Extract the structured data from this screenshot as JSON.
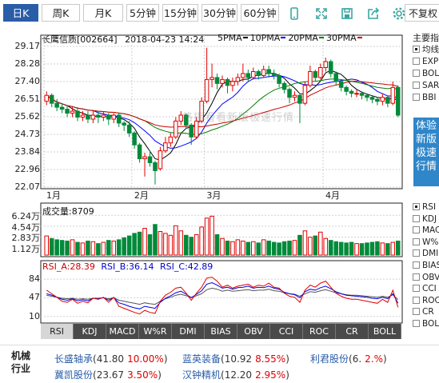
{
  "toolbar": {
    "tabs": [
      {
        "label": "日K",
        "active": true
      },
      {
        "label": "周K",
        "active": false
      },
      {
        "label": "月K",
        "active": false
      },
      {
        "label": "5分钟",
        "active": false
      },
      {
        "label": "15分钟",
        "active": false
      },
      {
        "label": "30分钟",
        "active": false
      },
      {
        "label": "60分钟",
        "active": false
      }
    ],
    "icons": [
      "mobile-icon",
      "fullscreen-icon",
      "save-icon",
      "share-icon",
      "settings-icon"
    ],
    "adjust": "不复权"
  },
  "header": {
    "stock": "长鹰信质[002664]",
    "datetime": "2018-04-23 14:24",
    "ma": [
      {
        "label": "5PMA",
        "color": "#000000"
      },
      {
        "label": "10PMA",
        "color": "#0000ff"
      },
      {
        "label": "20PMA",
        "color": "#008000"
      },
      {
        "label": "30PMA",
        "color": "#cc0000"
      }
    ]
  },
  "watermark": "格指看看新版极速行情",
  "price_axis": {
    "ticks": [
      "29.17",
      "28.28",
      "27.40",
      "26.51",
      "25.62",
      "24.73",
      "23.84",
      "22.96",
      "22.07"
    ]
  },
  "months": [
    "1月",
    "2月",
    "3月",
    "4月"
  ],
  "sidebar": {
    "title": "主要指",
    "items": [
      {
        "label": "均线",
        "on": true
      },
      {
        "label": "EXPMA",
        "on": false
      },
      {
        "label": "BOLL",
        "on": false
      },
      {
        "label": "SAR",
        "on": false
      },
      {
        "label": "BBI",
        "on": false
      }
    ],
    "promo": [
      "体验",
      "新版",
      "极速",
      "行情"
    ],
    "sub_items": [
      {
        "label": "RSI",
        "on": true
      },
      {
        "label": "KDJ",
        "on": false
      },
      {
        "label": "MACD",
        "on": false
      },
      {
        "label": "W%R",
        "on": false
      },
      {
        "label": "DMI",
        "on": false
      },
      {
        "label": "BIAS",
        "on": false
      },
      {
        "label": "OBV",
        "on": false
      },
      {
        "label": "CCI",
        "on": false
      },
      {
        "label": "ROC",
        "on": false
      },
      {
        "label": "CR",
        "on": false
      },
      {
        "label": "BOLL",
        "on": false
      }
    ]
  },
  "volume": {
    "label": "成交量:8709",
    "ticks": [
      "6.24万",
      "4.54万",
      "2.83万",
      "1.12万"
    ]
  },
  "rsi": {
    "a": "RSI_A:28.39",
    "b": "RSI_B:36.14",
    "c": "RSI_C:42.89",
    "ticks": [
      "84",
      "47",
      "10"
    ]
  },
  "indicator_tabs": [
    {
      "label": "RSI",
      "active": true
    },
    {
      "label": "KDJ",
      "active": false
    },
    {
      "label": "MACD",
      "active": false
    },
    {
      "label": "W%R",
      "active": false
    },
    {
      "label": "DMI",
      "active": false
    },
    {
      "label": "BIAS",
      "active": false
    },
    {
      "label": "OBV",
      "active": false
    },
    {
      "label": "CCI",
      "active": false
    },
    {
      "label": "ROC",
      "active": false
    },
    {
      "label": "CR",
      "active": false
    },
    {
      "label": "BOLL",
      "active": false
    }
  ],
  "industry": {
    "label_top": "机械",
    "label_bottom": "行业",
    "stocks": [
      {
        "name": "长盛轴承",
        "price": "(41.80",
        "pct": "10.00%",
        "close": ")"
      },
      {
        "name": "蓝英装备",
        "price": "(10.92",
        "pct": "8.55%",
        "close": ")"
      },
      {
        "name": "利君股份",
        "price": "(6.",
        "pct": "2.%",
        "close": ")"
      },
      {
        "name": "冀凯股份",
        "price": "(23.67",
        "pct": "3.50%",
        "close": ")"
      },
      {
        "name": "汉钟精机",
        "price": "(12.20",
        "pct": "2.95%",
        "close": ")"
      }
    ]
  },
  "chart_data": {
    "type": "candlestick",
    "price_range": [
      22.07,
      29.17
    ],
    "candles": [
      [
        26.4,
        26.7,
        26.2,
        26.9
      ],
      [
        26.7,
        26.3,
        26.1,
        26.8
      ],
      [
        26.3,
        26.1,
        25.9,
        26.5
      ],
      [
        26.1,
        26.0,
        25.8,
        26.3
      ],
      [
        26.0,
        25.8,
        25.6,
        26.2
      ],
      [
        25.8,
        25.9,
        25.6,
        26.1
      ],
      [
        25.9,
        25.6,
        25.4,
        26.1
      ],
      [
        25.6,
        25.7,
        25.4,
        25.9
      ],
      [
        25.7,
        25.5,
        25.3,
        25.9
      ],
      [
        25.5,
        25.7,
        25.3,
        25.9
      ],
      [
        25.7,
        25.6,
        25.3,
        25.9
      ],
      [
        25.6,
        25.7,
        25.4,
        25.9
      ],
      [
        25.7,
        25.5,
        25.2,
        25.8
      ],
      [
        25.5,
        25.7,
        25.3,
        25.8
      ],
      [
        25.7,
        25.3,
        25.1,
        25.8
      ],
      [
        25.3,
        25.2,
        24.9,
        25.4
      ],
      [
        25.2,
        24.8,
        24.6,
        25.4
      ],
      [
        24.8,
        24.2,
        24.0,
        24.9
      ],
      [
        24.2,
        23.5,
        23.3,
        24.3
      ],
      [
        23.5,
        23.6,
        22.6,
        23.8
      ],
      [
        23.6,
        23.3,
        23.1,
        23.9
      ],
      [
        23.3,
        22.9,
        22.2,
        23.4
      ],
      [
        23.0,
        23.9,
        22.9,
        24.1
      ],
      [
        23.9,
        24.3,
        23.8,
        24.6
      ],
      [
        24.3,
        24.6,
        24.1,
        24.8
      ],
      [
        24.6,
        25.4,
        24.5,
        25.6
      ],
      [
        25.4,
        25.7,
        25.2,
        25.9
      ],
      [
        25.7,
        25.2,
        25.0,
        25.8
      ],
      [
        25.2,
        24.6,
        24.2,
        25.3
      ],
      [
        24.6,
        25.4,
        24.5,
        25.6
      ],
      [
        25.4,
        26.4,
        25.3,
        26.6
      ],
      [
        26.4,
        27.5,
        26.3,
        29.1
      ],
      [
        27.5,
        27.6,
        27.1,
        28.3
      ],
      [
        27.6,
        27.3,
        27.0,
        27.8
      ],
      [
        27.3,
        27.5,
        27.1,
        27.7
      ],
      [
        27.5,
        27.2,
        26.8,
        27.6
      ],
      [
        27.2,
        27.4,
        26.9,
        27.6
      ],
      [
        27.4,
        27.6,
        27.2,
        27.8
      ],
      [
        27.6,
        27.8,
        27.4,
        28.3
      ],
      [
        27.8,
        27.6,
        27.4,
        28.0
      ],
      [
        27.6,
        27.9,
        27.5,
        28.1
      ],
      [
        27.9,
        27.7,
        27.5,
        28.0
      ],
      [
        27.7,
        28.0,
        27.6,
        28.2
      ],
      [
        28.0,
        27.8,
        27.6,
        28.2
      ],
      [
        27.8,
        27.7,
        27.5,
        28.0
      ],
      [
        27.7,
        27.3,
        27.1,
        27.8
      ],
      [
        27.3,
        27.0,
        26.8,
        27.4
      ],
      [
        27.0,
        26.6,
        26.3,
        27.1
      ],
      [
        26.6,
        26.7,
        26.4,
        26.9
      ],
      [
        26.7,
        26.3,
        25.3,
        26.8
      ],
      [
        26.3,
        27.2,
        26.2,
        27.4
      ],
      [
        27.2,
        27.9,
        27.1,
        28.2
      ],
      [
        27.9,
        27.6,
        27.4,
        28.0
      ],
      [
        27.6,
        28.1,
        27.5,
        28.3
      ],
      [
        28.1,
        28.4,
        27.9,
        28.6
      ],
      [
        28.4,
        27.8,
        27.6,
        28.5
      ],
      [
        27.8,
        27.4,
        27.2,
        27.9
      ],
      [
        27.4,
        27.1,
        26.9,
        27.5
      ],
      [
        27.1,
        26.9,
        26.7,
        27.2
      ],
      [
        26.9,
        26.8,
        26.6,
        27.0
      ],
      [
        26.8,
        26.8,
        26.6,
        27.0
      ],
      [
        26.8,
        26.7,
        26.5,
        26.9
      ],
      [
        26.7,
        26.6,
        26.4,
        26.8
      ],
      [
        26.6,
        26.5,
        26.3,
        26.7
      ],
      [
        26.5,
        26.4,
        26.2,
        26.6
      ],
      [
        26.4,
        26.6,
        26.2,
        26.8
      ],
      [
        26.6,
        26.3,
        26.1,
        26.7
      ],
      [
        26.3,
        27.1,
        26.2,
        27.4
      ],
      [
        27.1,
        25.7,
        25.6,
        27.2
      ]
    ],
    "volumes": [
      3.0,
      2.6,
      2.4,
      2.3,
      2.2,
      2.4,
      2.0,
      1.9,
      2.2,
      2.1,
      1.8,
      2.0,
      2.3,
      2.2,
      2.4,
      2.7,
      3.0,
      3.4,
      3.6,
      4.2,
      3.2,
      4.8,
      3.7,
      3.4,
      3.1,
      4.6,
      3.8,
      3.1,
      2.8,
      3.2,
      4.4,
      5.8,
      6.1,
      3.2,
      2.6,
      2.2,
      2.1,
      2.4,
      2.2,
      2.0,
      2.1,
      1.9,
      2.4,
      2.2,
      2.0,
      1.9,
      2.1,
      2.2,
      2.3,
      3.1,
      3.8,
      2.8,
      3.0,
      3.6,
      2.6,
      2.3,
      2.1,
      2.0,
      1.9,
      2.0,
      1.8,
      1.8,
      1.9,
      2.0,
      2.1,
      1.9,
      1.8,
      2.0,
      2.2
    ],
    "rsi_a": [
      62,
      55,
      48,
      40,
      38,
      44,
      36,
      40,
      37,
      46,
      44,
      48,
      38,
      48,
      30,
      26,
      22,
      18,
      15,
      22,
      18,
      16,
      40,
      52,
      58,
      66,
      68,
      56,
      42,
      56,
      68,
      86,
      88,
      80,
      68,
      72,
      66,
      70,
      72,
      74,
      68,
      72,
      70,
      76,
      68,
      66,
      56,
      50,
      48,
      38,
      62,
      72,
      68,
      76,
      80,
      68,
      56,
      50,
      46,
      44,
      44,
      42,
      40,
      38,
      36,
      44,
      38,
      62,
      28
    ],
    "rsi_b": [
      55,
      52,
      48,
      44,
      42,
      45,
      41,
      43,
      41,
      46,
      45,
      47,
      42,
      47,
      37,
      34,
      30,
      27,
      25,
      30,
      28,
      26,
      38,
      46,
      51,
      57,
      60,
      54,
      47,
      54,
      61,
      74,
      77,
      72,
      66,
      68,
      64,
      67,
      68,
      70,
      66,
      68,
      67,
      70,
      66,
      64,
      58,
      55,
      53,
      47,
      59,
      64,
      62,
      67,
      70,
      65,
      59,
      55,
      52,
      51,
      50,
      49,
      48,
      46,
      45,
      48,
      45,
      55,
      36
    ],
    "rsi_c": [
      52,
      50,
      48,
      46,
      45,
      46,
      44,
      45,
      44,
      46,
      46,
      47,
      45,
      47,
      42,
      40,
      38,
      36,
      34,
      37,
      35,
      34,
      40,
      45,
      48,
      52,
      54,
      51,
      48,
      51,
      55,
      63,
      66,
      64,
      60,
      62,
      60,
      61,
      62,
      63,
      61,
      62,
      62,
      64,
      61,
      60,
      57,
      55,
      54,
      50,
      55,
      59,
      58,
      61,
      63,
      60,
      57,
      55,
      53,
      52,
      52,
      51,
      50,
      49,
      48,
      50,
      48,
      53,
      43
    ],
    "rsi_range": [
      0,
      100
    ]
  }
}
